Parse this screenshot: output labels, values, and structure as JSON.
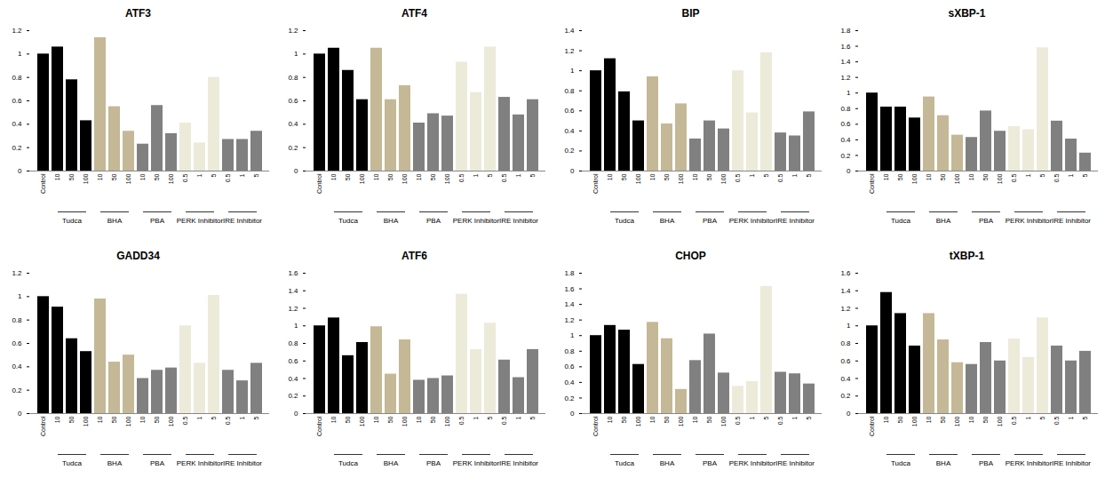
{
  "chart_data": [
    {
      "type": "bar",
      "title": "ATF3",
      "categories": [
        "Control",
        "10",
        "50",
        "100",
        "10",
        "50",
        "100",
        "10",
        "50",
        "100",
        "0.5",
        "1",
        "5",
        "0.5",
        "1",
        "5"
      ],
      "group_labels": [
        null,
        "Tudca",
        "Tudca",
        "Tudca",
        "BHA",
        "BHA",
        "BHA",
        "PBA",
        "PBA",
        "PBA",
        "PERK Inhibitor",
        "PERK Inhibitor",
        "PERK Inhibitor",
        "IRE Inhibitor",
        "IRE Inhibitor",
        "IRE Inhibitor"
      ],
      "values": [
        1,
        1.06,
        0.78,
        0.43,
        1.14,
        0.55,
        0.34,
        0.23,
        0.56,
        0.32,
        0.41,
        0.24,
        0.8,
        0.27,
        0.27,
        0.34
      ],
      "colors": [
        "#000000",
        "#000000",
        "#000000",
        "#000000",
        "#c4b896",
        "#c4b896",
        "#c4b896",
        "#808080",
        "#808080",
        "#808080",
        "#ecead9",
        "#ecead9",
        "#ecead9",
        "#808080",
        "#808080",
        "#808080"
      ],
      "ylim": [
        0,
        1.2
      ],
      "yticks": [
        0,
        0.2,
        0.4,
        0.6,
        0.8,
        1,
        1.2
      ]
    },
    {
      "type": "bar",
      "title": "ATF4",
      "categories": [
        "Control",
        "10",
        "50",
        "100",
        "10",
        "50",
        "100",
        "10",
        "50",
        "100",
        "0.5",
        "1",
        "5",
        "0.5",
        "1",
        "5"
      ],
      "group_labels": [
        null,
        "Tudca",
        "Tudca",
        "Tudca",
        "BHA",
        "BHA",
        "BHA",
        "PBA",
        "PBA",
        "PBA",
        "PERK Inhibitor",
        "PERK Inhibitor",
        "PERK Inhibitor",
        "IRE Inhibitor",
        "IRE Inhibitor",
        "IRE Inhibitor"
      ],
      "values": [
        1,
        1.05,
        0.86,
        0.61,
        1.05,
        0.61,
        0.73,
        0.41,
        0.49,
        0.47,
        0.93,
        0.67,
        1.06,
        0.63,
        0.48,
        0.61
      ],
      "colors": [
        "#000000",
        "#000000",
        "#000000",
        "#000000",
        "#c4b896",
        "#c4b896",
        "#c4b896",
        "#808080",
        "#808080",
        "#808080",
        "#ecead9",
        "#ecead9",
        "#ecead9",
        "#808080",
        "#808080",
        "#808080"
      ],
      "ylim": [
        0,
        1.2
      ],
      "yticks": [
        0,
        0.2,
        0.4,
        0.6,
        0.8,
        1,
        1.2
      ]
    },
    {
      "type": "bar",
      "title": "BIP",
      "categories": [
        "Control",
        "10",
        "50",
        "100",
        "10",
        "50",
        "100",
        "10",
        "50",
        "100",
        "0.5",
        "1",
        "5",
        "0.5",
        "1",
        "5"
      ],
      "group_labels": [
        null,
        "Tudca",
        "Tudca",
        "Tudca",
        "BHA",
        "BHA",
        "BHA",
        "PBA",
        "PBA",
        "PBA",
        "PERK Inhibitor",
        "PERK Inhibitor",
        "PERK Inhibitor",
        "IRE Inhibitor",
        "IRE Inhibitor",
        "IRE Inhibitor"
      ],
      "values": [
        1,
        1.12,
        0.79,
        0.5,
        0.94,
        0.47,
        0.67,
        0.32,
        0.5,
        0.42,
        1,
        0.58,
        1.18,
        0.38,
        0.35,
        0.59
      ],
      "colors": [
        "#000000",
        "#000000",
        "#000000",
        "#000000",
        "#c4b896",
        "#c4b896",
        "#c4b896",
        "#808080",
        "#808080",
        "#808080",
        "#ecead9",
        "#ecead9",
        "#ecead9",
        "#808080",
        "#808080",
        "#808080"
      ],
      "ylim": [
        0,
        1.4
      ],
      "yticks": [
        0,
        0.2,
        0.4,
        0.6,
        0.8,
        1,
        1.2,
        1.4
      ]
    },
    {
      "type": "bar",
      "title": "sXBP-1",
      "categories": [
        "Control",
        "10",
        "50",
        "100",
        "10",
        "50",
        "100",
        "10",
        "50",
        "100",
        "0.5",
        "1",
        "5",
        "0.5",
        "1",
        "5"
      ],
      "group_labels": [
        null,
        "Tudca",
        "Tudca",
        "Tudca",
        "BHA",
        "BHA",
        "BHA",
        "PBA",
        "PBA",
        "PBA",
        "PERK Inhibitor",
        "PERK Inhibitor",
        "PERK Inhibitor",
        "IRE Inhibitor",
        "IRE Inhibitor",
        "IRE Inhibitor"
      ],
      "values": [
        1,
        0.82,
        0.82,
        0.68,
        0.95,
        0.71,
        0.46,
        0.43,
        0.77,
        0.51,
        0.57,
        0.53,
        1.58,
        0.64,
        0.41,
        0.23
      ],
      "colors": [
        "#000000",
        "#000000",
        "#000000",
        "#000000",
        "#c4b896",
        "#c4b896",
        "#c4b896",
        "#808080",
        "#808080",
        "#808080",
        "#ecead9",
        "#ecead9",
        "#ecead9",
        "#808080",
        "#808080",
        "#808080"
      ],
      "ylim": [
        0,
        1.8
      ],
      "yticks": [
        0,
        0.2,
        0.4,
        0.6,
        0.8,
        1,
        1.2,
        1.4,
        1.6,
        1.8
      ]
    },
    {
      "type": "bar",
      "title": "GADD34",
      "categories": [
        "Control",
        "10",
        "50",
        "100",
        "10",
        "50",
        "100",
        "10",
        "50",
        "100",
        "0.5",
        "1",
        "5",
        "0.5",
        "1",
        "5"
      ],
      "group_labels": [
        null,
        "Tudca",
        "Tudca",
        "Tudca",
        "BHA",
        "BHA",
        "BHA",
        "PBA",
        "PBA",
        "PBA",
        "PERK Inhibitor",
        "PERK Inhibitor",
        "PERK Inhibitor",
        "IRE Inhibitor",
        "IRE Inhibitor",
        "IRE Inhibitor"
      ],
      "values": [
        1,
        0.91,
        0.64,
        0.53,
        0.98,
        0.44,
        0.5,
        0.3,
        0.37,
        0.39,
        0.75,
        0.43,
        1.01,
        0.37,
        0.28,
        0.43
      ],
      "colors": [
        "#000000",
        "#000000",
        "#000000",
        "#000000",
        "#c4b896",
        "#c4b896",
        "#c4b896",
        "#808080",
        "#808080",
        "#808080",
        "#ecead9",
        "#ecead9",
        "#ecead9",
        "#808080",
        "#808080",
        "#808080"
      ],
      "ylim": [
        0,
        1.2
      ],
      "yticks": [
        0,
        0.2,
        0.4,
        0.6,
        0.8,
        1,
        1.2
      ]
    },
    {
      "type": "bar",
      "title": "ATF6",
      "categories": [
        "Control",
        "10",
        "50",
        "100",
        "10",
        "50",
        "100",
        "10",
        "50",
        "100",
        "0.5",
        "1",
        "5",
        "0.5",
        "1",
        "5"
      ],
      "group_labels": [
        null,
        "Tudca",
        "Tudca",
        "Tudca",
        "BHA",
        "BHA",
        "BHA",
        "PBA",
        "PBA",
        "PBA",
        "PERK Inhibitor",
        "PERK Inhibitor",
        "PERK Inhibitor",
        "IRE Inhibitor",
        "IRE Inhibitor",
        "IRE Inhibitor"
      ],
      "values": [
        1,
        1.09,
        0.66,
        0.81,
        0.99,
        0.45,
        0.84,
        0.38,
        0.4,
        0.43,
        1.36,
        0.73,
        1.03,
        0.61,
        0.41,
        0.73
      ],
      "colors": [
        "#000000",
        "#000000",
        "#000000",
        "#000000",
        "#c4b896",
        "#c4b896",
        "#c4b896",
        "#808080",
        "#808080",
        "#808080",
        "#ecead9",
        "#ecead9",
        "#ecead9",
        "#808080",
        "#808080",
        "#808080"
      ],
      "ylim": [
        0,
        1.6
      ],
      "yticks": [
        0,
        0.2,
        0.4,
        0.6,
        0.8,
        1,
        1.2,
        1.4,
        1.6
      ]
    },
    {
      "type": "bar",
      "title": "CHOP",
      "categories": [
        "Control",
        "10",
        "50",
        "100",
        "10",
        "50",
        "100",
        "10",
        "50",
        "100",
        "0.5",
        "1",
        "5",
        "0.5",
        "1",
        "5"
      ],
      "group_labels": [
        null,
        "Tudca",
        "Tudca",
        "Tudca",
        "BHA",
        "BHA",
        "BHA",
        "PBA",
        "PBA",
        "PBA",
        "PERK Inhibitor",
        "PERK Inhibitor",
        "PERK Inhibitor",
        "IRE Inhibitor",
        "IRE Inhibitor",
        "IRE Inhibitor"
      ],
      "values": [
        1,
        1.13,
        1.07,
        0.63,
        1.17,
        0.96,
        0.31,
        0.68,
        1.02,
        0.52,
        0.35,
        0.41,
        1.63,
        0.53,
        0.51,
        0.38
      ],
      "colors": [
        "#000000",
        "#000000",
        "#000000",
        "#000000",
        "#c4b896",
        "#c4b896",
        "#c4b896",
        "#808080",
        "#808080",
        "#808080",
        "#ecead9",
        "#ecead9",
        "#ecead9",
        "#808080",
        "#808080",
        "#808080"
      ],
      "ylim": [
        0,
        1.8
      ],
      "yticks": [
        0,
        0.2,
        0.4,
        0.6,
        0.8,
        1,
        1.2,
        1.4,
        1.6,
        1.8
      ]
    },
    {
      "type": "bar",
      "title": "tXBP-1",
      "categories": [
        "Control",
        "10",
        "50",
        "100",
        "10",
        "50",
        "100",
        "10",
        "50",
        "100",
        "0.5",
        "1",
        "5",
        "0.5",
        "1",
        "5"
      ],
      "group_labels": [
        null,
        "Tudca",
        "Tudca",
        "Tudca",
        "BHA",
        "BHA",
        "BHA",
        "PBA",
        "PBA",
        "PBA",
        "PERK Inhibitor",
        "PERK Inhibitor",
        "PERK Inhibitor",
        "IRE Inhibitor",
        "IRE Inhibitor",
        "IRE Inhibitor"
      ],
      "values": [
        1,
        1.38,
        1.14,
        0.77,
        1.14,
        0.84,
        0.58,
        0.56,
        0.81,
        0.6,
        0.85,
        0.64,
        1.09,
        0.77,
        0.6,
        0.71
      ],
      "colors": [
        "#000000",
        "#000000",
        "#000000",
        "#000000",
        "#c4b896",
        "#c4b896",
        "#c4b896",
        "#808080",
        "#808080",
        "#808080",
        "#ecead9",
        "#ecead9",
        "#ecead9",
        "#808080",
        "#808080",
        "#808080"
      ],
      "ylim": [
        0,
        1.6
      ],
      "yticks": [
        0,
        0.2,
        0.4,
        0.6,
        0.8,
        1,
        1.2,
        1.4,
        1.6
      ]
    }
  ]
}
